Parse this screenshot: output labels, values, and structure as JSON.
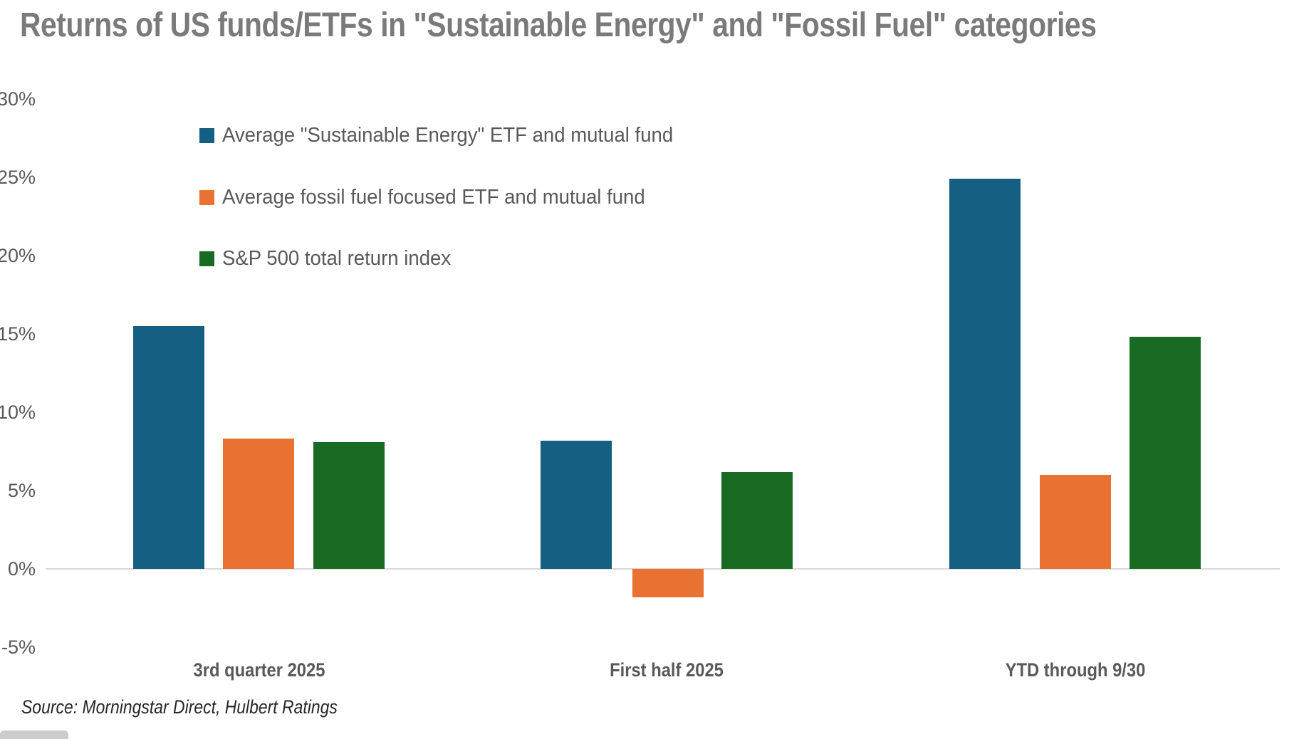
{
  "title": "Returns of US funds/ETFs in \"Sustainable Energy\" and \"Fossil Fuel\" categories",
  "source": "Source: Morningstar Direct, Hulbert Ratings",
  "colors": {
    "sustainable_blue": "#156082",
    "fossil_orange": "#E97132",
    "sp500_green": "#196B24",
    "title_gray": "#7a7a7a",
    "label_gray": "#595959",
    "axis_line_gray": "#d9d9d9"
  },
  "chart_data": {
    "type": "bar",
    "title": "Returns of US funds/ETFs in \"Sustainable Energy\" and \"Fossil Fuel\" categories",
    "categories": [
      "3rd quarter 2025",
      "First half 2025",
      "YTD through 9/30"
    ],
    "series": [
      {
        "name": "Average \"Sustainable Energy\" ETF and mutual fund",
        "color": "#156082",
        "values": [
          15.5,
          8.2,
          24.9
        ]
      },
      {
        "name": "Average fossil fuel focused ETF and mutual fund",
        "color": "#E97132",
        "values": [
          8.3,
          -1.8,
          6.0
        ]
      },
      {
        "name": "S&P 500 total return index",
        "color": "#196B24",
        "values": [
          8.1,
          6.2,
          14.8
        ]
      }
    ],
    "xlabel": "",
    "ylabel": "",
    "y_ticks": [
      30,
      25,
      20,
      15,
      10,
      5,
      0,
      -5
    ],
    "y_tick_suffix": "%",
    "ylim": [
      -7.5,
      31
    ],
    "grid": false,
    "legend_position": "top-left-inside",
    "source": "Source: Morningstar Direct, Hulbert Ratings"
  }
}
